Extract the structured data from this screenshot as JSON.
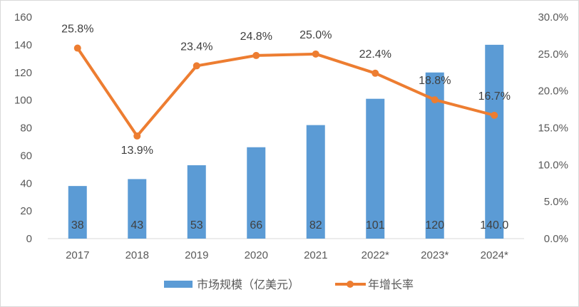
{
  "chart_data": {
    "type": "bar+line",
    "categories": [
      "2017",
      "2018",
      "2019",
      "2020",
      "2021",
      "2022*",
      "2023*",
      "2024*"
    ],
    "series": [
      {
        "name": "市场规模（亿美元）",
        "type": "bar",
        "axis": "left",
        "color": "#5B9BD5",
        "values": [
          38,
          43,
          53,
          66,
          82,
          101,
          120,
          140.0
        ],
        "labels": [
          "38",
          "43",
          "53",
          "66",
          "82",
          "101",
          "120",
          "140.0"
        ]
      },
      {
        "name": "年增长率",
        "type": "line",
        "axis": "right",
        "color": "#ED7D31",
        "values": [
          25.8,
          13.9,
          23.4,
          24.8,
          25.0,
          22.4,
          18.8,
          16.7
        ],
        "labels": [
          "25.8%",
          "13.9%",
          "23.4%",
          "24.8%",
          "25.0%",
          "22.4%",
          "18.8%",
          "16.7%"
        ]
      }
    ],
    "y_left": {
      "range": [
        0,
        160
      ],
      "ticks": [
        "0",
        "20",
        "40",
        "60",
        "80",
        "100",
        "120",
        "140",
        "160"
      ]
    },
    "y_right": {
      "range": [
        0,
        30
      ],
      "ticks": [
        "0.0%",
        "5.0%",
        "10.0%",
        "15.0%",
        "20.0%",
        "25.0%",
        "30.0%"
      ]
    },
    "grid": false,
    "legend": "bottom"
  }
}
